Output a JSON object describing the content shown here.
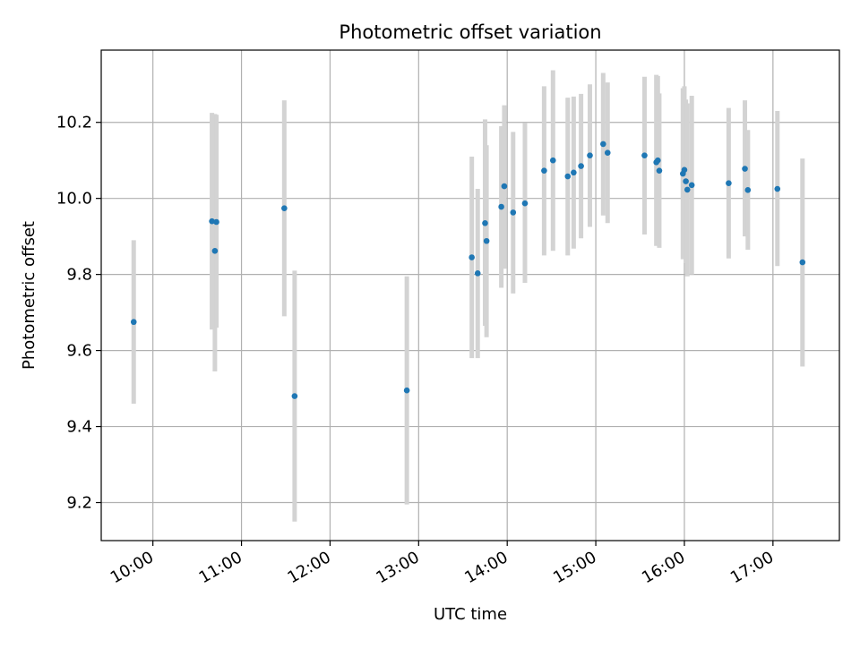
{
  "chart_data": {
    "type": "scatter",
    "title": "Photometric offset variation",
    "xlabel": "UTC time",
    "ylabel": "Photometric offset",
    "x_unit": "UTC time of day",
    "xlim": [
      "09:25",
      "17:45"
    ],
    "ylim": [
      9.1,
      10.39
    ],
    "x_ticks": [
      "10:00",
      "11:00",
      "12:00",
      "13:00",
      "14:00",
      "15:00",
      "16:00",
      "17:00"
    ],
    "y_ticks": [
      "9.2",
      "9.4",
      "9.6",
      "9.8",
      "10.0",
      "10.2"
    ],
    "grid": true,
    "legend": "none",
    "colors": {
      "point": "#1f77b4",
      "errorbar": "#d3d3d3",
      "grid": "#b0b0b0"
    },
    "points": [
      {
        "x": "09:47",
        "y": 9.675,
        "lo": 9.46,
        "hi": 9.89
      },
      {
        "x": "10:40",
        "y": 9.94,
        "lo": 9.655,
        "hi": 10.225
      },
      {
        "x": "10:42",
        "y": 9.862,
        "lo": 9.545,
        "hi": 10.222
      },
      {
        "x": "10:43",
        "y": 9.938,
        "lo": 9.66,
        "hi": 10.22
      },
      {
        "x": "11:29",
        "y": 9.974,
        "lo": 9.69,
        "hi": 10.258
      },
      {
        "x": "11:36",
        "y": 9.48,
        "lo": 9.15,
        "hi": 9.81
      },
      {
        "x": "12:52",
        "y": 9.495,
        "lo": 9.195,
        "hi": 9.795
      },
      {
        "x": "13:36",
        "y": 9.845,
        "lo": 9.58,
        "hi": 10.11
      },
      {
        "x": "13:40",
        "y": 9.803,
        "lo": 9.58,
        "hi": 10.025
      },
      {
        "x": "13:45",
        "y": 9.935,
        "lo": 9.665,
        "hi": 10.208
      },
      {
        "x": "13:46",
        "y": 9.888,
        "lo": 9.635,
        "hi": 10.14
      },
      {
        "x": "13:56",
        "y": 9.978,
        "lo": 9.765,
        "hi": 10.19
      },
      {
        "x": "13:58",
        "y": 10.032,
        "lo": 9.815,
        "hi": 10.245
      },
      {
        "x": "14:04",
        "y": 9.963,
        "lo": 9.75,
        "hi": 10.175
      },
      {
        "x": "14:12",
        "y": 9.987,
        "lo": 9.778,
        "hi": 10.198
      },
      {
        "x": "14:25",
        "y": 10.073,
        "lo": 9.85,
        "hi": 10.295
      },
      {
        "x": "14:31",
        "y": 10.1,
        "lo": 9.862,
        "hi": 10.337
      },
      {
        "x": "14:41",
        "y": 10.058,
        "lo": 9.85,
        "hi": 10.265
      },
      {
        "x": "14:45",
        "y": 10.068,
        "lo": 9.868,
        "hi": 10.268
      },
      {
        "x": "14:50",
        "y": 10.085,
        "lo": 9.895,
        "hi": 10.275
      },
      {
        "x": "14:56",
        "y": 10.113,
        "lo": 9.925,
        "hi": 10.3
      },
      {
        "x": "15:05",
        "y": 10.143,
        "lo": 9.955,
        "hi": 10.33
      },
      {
        "x": "15:08",
        "y": 10.12,
        "lo": 9.935,
        "hi": 10.305
      },
      {
        "x": "15:33",
        "y": 10.113,
        "lo": 9.905,
        "hi": 10.32
      },
      {
        "x": "15:41",
        "y": 10.095,
        "lo": 9.875,
        "hi": 10.325
      },
      {
        "x": "15:42",
        "y": 10.1,
        "lo": 9.878,
        "hi": 10.322
      },
      {
        "x": "15:43",
        "y": 10.073,
        "lo": 9.87,
        "hi": 10.276
      },
      {
        "x": "15:59",
        "y": 10.065,
        "lo": 9.84,
        "hi": 10.29
      },
      {
        "x": "16:00",
        "y": 10.075,
        "lo": 9.855,
        "hi": 10.295
      },
      {
        "x": "16:01",
        "y": 10.045,
        "lo": 9.83,
        "hi": 10.26
      },
      {
        "x": "16:02",
        "y": 10.023,
        "lo": 9.795,
        "hi": 10.25
      },
      {
        "x": "16:05",
        "y": 10.035,
        "lo": 9.8,
        "hi": 10.27
      },
      {
        "x": "16:30",
        "y": 10.04,
        "lo": 9.842,
        "hi": 10.238
      },
      {
        "x": "16:41",
        "y": 10.078,
        "lo": 9.9,
        "hi": 10.258
      },
      {
        "x": "16:43",
        "y": 10.022,
        "lo": 9.865,
        "hi": 10.18
      },
      {
        "x": "17:03",
        "y": 10.025,
        "lo": 9.822,
        "hi": 10.23
      },
      {
        "x": "17:20",
        "y": 9.832,
        "lo": 9.558,
        "hi": 10.105
      }
    ]
  }
}
